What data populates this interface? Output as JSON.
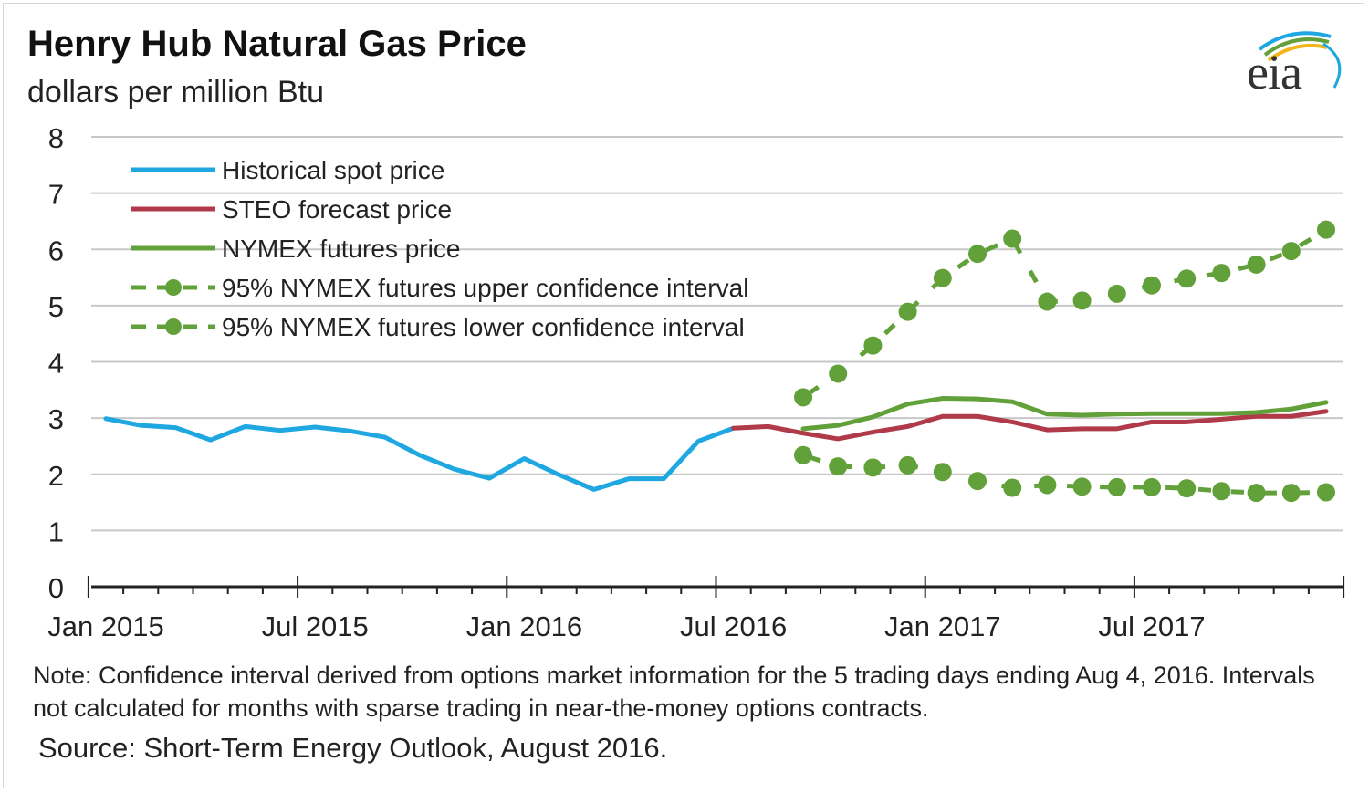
{
  "header": {
    "title": "Henry Hub Natural Gas Price",
    "subtitle": "dollars per million Btu",
    "logo_text": "eia"
  },
  "footer": {
    "note": "Note: Confidence interval derived from options market information for the 5 trading days ending Aug 4, 2016. Intervals not calculated for months with sparse trading in near-the-money options contracts.",
    "source": "Source: Short-Term Energy Outlook, August 2016."
  },
  "colors": {
    "historical": "#1ea7e0",
    "steo": "#b03a4a",
    "nymex": "#62a03a",
    "grid": "#c8c8c8",
    "axis": "#222222"
  },
  "chart_data": {
    "type": "line",
    "title": "Henry Hub Natural Gas Price",
    "ylabel": "dollars per million Btu",
    "xlabel": "",
    "ylim": [
      0,
      8
    ],
    "yticks": [
      0,
      1,
      2,
      3,
      4,
      5,
      6,
      7,
      8
    ],
    "xlim": [
      "2015-01",
      "2017-12"
    ],
    "xtick_labels": [
      {
        "date": "2015-01",
        "label": "Jan 2015"
      },
      {
        "date": "2015-07",
        "label": "Jul 2015"
      },
      {
        "date": "2016-01",
        "label": "Jan 2016"
      },
      {
        "date": "2016-07",
        "label": "Jul 2016"
      },
      {
        "date": "2017-01",
        "label": "Jan 2017"
      },
      {
        "date": "2017-07",
        "label": "Jul 2017"
      }
    ],
    "grid": true,
    "legend_position": "top-left",
    "series": [
      {
        "name": "Historical spot price",
        "style": "solid",
        "color": "#1ea7e0",
        "x": [
          "2015-01",
          "2015-02",
          "2015-03",
          "2015-04",
          "2015-05",
          "2015-06",
          "2015-07",
          "2015-08",
          "2015-09",
          "2015-10",
          "2015-11",
          "2015-12",
          "2016-01",
          "2016-02",
          "2016-03",
          "2016-04",
          "2016-05",
          "2016-06",
          "2016-07"
        ],
        "y": [
          2.99,
          2.87,
          2.83,
          2.61,
          2.85,
          2.78,
          2.84,
          2.77,
          2.66,
          2.34,
          2.09,
          1.93,
          2.28,
          1.99,
          1.73,
          1.92,
          1.92,
          2.59,
          2.82
        ]
      },
      {
        "name": "STEO forecast price",
        "style": "solid",
        "color": "#b03a4a",
        "x": [
          "2016-07",
          "2016-08",
          "2016-09",
          "2016-10",
          "2016-11",
          "2016-12",
          "2017-01",
          "2017-02",
          "2017-03",
          "2017-04",
          "2017-05",
          "2017-06",
          "2017-07",
          "2017-08",
          "2017-09",
          "2017-10",
          "2017-11",
          "2017-12"
        ],
        "y": [
          2.82,
          2.85,
          2.73,
          2.63,
          2.75,
          2.85,
          3.03,
          3.03,
          2.93,
          2.79,
          2.81,
          2.81,
          2.93,
          2.93,
          2.98,
          3.03,
          3.03,
          3.12
        ]
      },
      {
        "name": "NYMEX futures price",
        "style": "solid",
        "color": "#62a03a",
        "x": [
          "2016-09",
          "2016-10",
          "2016-11",
          "2016-12",
          "2017-01",
          "2017-02",
          "2017-03",
          "2017-04",
          "2017-05",
          "2017-06",
          "2017-07",
          "2017-08",
          "2017-09",
          "2017-10",
          "2017-11",
          "2017-12"
        ],
        "y": [
          2.81,
          2.87,
          3.02,
          3.25,
          3.35,
          3.34,
          3.29,
          3.07,
          3.05,
          3.07,
          3.08,
          3.08,
          3.08,
          3.1,
          3.16,
          3.28
        ]
      },
      {
        "name": "95% NYMEX futures upper confidence interval",
        "style": "dashed-dot",
        "color": "#62a03a",
        "x": [
          "2016-09",
          "2016-10",
          "2016-11",
          "2016-12",
          "2017-01",
          "2017-02",
          "2017-03",
          "2017-04",
          "2017-05",
          "2017-06",
          "2017-07",
          "2017-08",
          "2017-09",
          "2017-10",
          "2017-11",
          "2017-12"
        ],
        "y": [
          3.37,
          3.79,
          4.29,
          4.89,
          5.49,
          5.92,
          6.19,
          5.07,
          5.09,
          5.21,
          5.36,
          5.48,
          5.58,
          5.73,
          5.97,
          6.35
        ]
      },
      {
        "name": "95% NYMEX futures lower confidence interval",
        "style": "dashed-dot",
        "color": "#62a03a",
        "x": [
          "2016-09",
          "2016-10",
          "2016-11",
          "2016-12",
          "2017-01",
          "2017-02",
          "2017-03",
          "2017-04",
          "2017-05",
          "2017-06",
          "2017-07",
          "2017-08",
          "2017-09",
          "2017-10",
          "2017-11",
          "2017-12"
        ],
        "y": [
          2.34,
          2.14,
          2.12,
          2.16,
          2.04,
          1.88,
          1.76,
          1.81,
          1.78,
          1.77,
          1.77,
          1.75,
          1.7,
          1.67,
          1.67,
          1.68
        ]
      }
    ]
  }
}
